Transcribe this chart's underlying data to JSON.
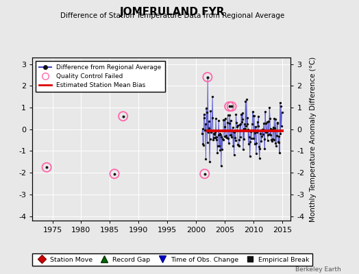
{
  "title": "JOMFRULAND FYR",
  "subtitle": "Difference of Station Temperature Data from Regional Average",
  "ylabel": "Monthly Temperature Anomaly Difference (°C)",
  "xlabel_ticks": [
    1975,
    1980,
    1985,
    1990,
    1995,
    2000,
    2005,
    2010,
    2015
  ],
  "yticks": [
    -4,
    -3,
    -2,
    -1,
    0,
    1,
    2,
    3
  ],
  "ylim": [
    -4.2,
    3.3
  ],
  "xlim": [
    1971.5,
    2016.5
  ],
  "bias_value": -0.08,
  "bias_start": 2001.8,
  "bias_end": 2015.2,
  "background_color": "#e8e8e8",
  "plot_bg_color": "#e8e8e8",
  "line_color": "#4444cc",
  "dot_color": "#111111",
  "bias_color": "#dd0000",
  "qc_edge_color": "#ff66aa",
  "watermark": "Berkeley Earth",
  "isolated_qc_points": [
    [
      1974.0,
      -1.75
    ],
    [
      1985.8,
      -2.05
    ],
    [
      1987.3,
      0.6
    ],
    [
      2002.0,
      2.4
    ],
    [
      2001.5,
      -2.05
    ],
    [
      2005.8,
      1.05
    ],
    [
      2006.2,
      1.05
    ]
  ],
  "dense_seed": 12345
}
